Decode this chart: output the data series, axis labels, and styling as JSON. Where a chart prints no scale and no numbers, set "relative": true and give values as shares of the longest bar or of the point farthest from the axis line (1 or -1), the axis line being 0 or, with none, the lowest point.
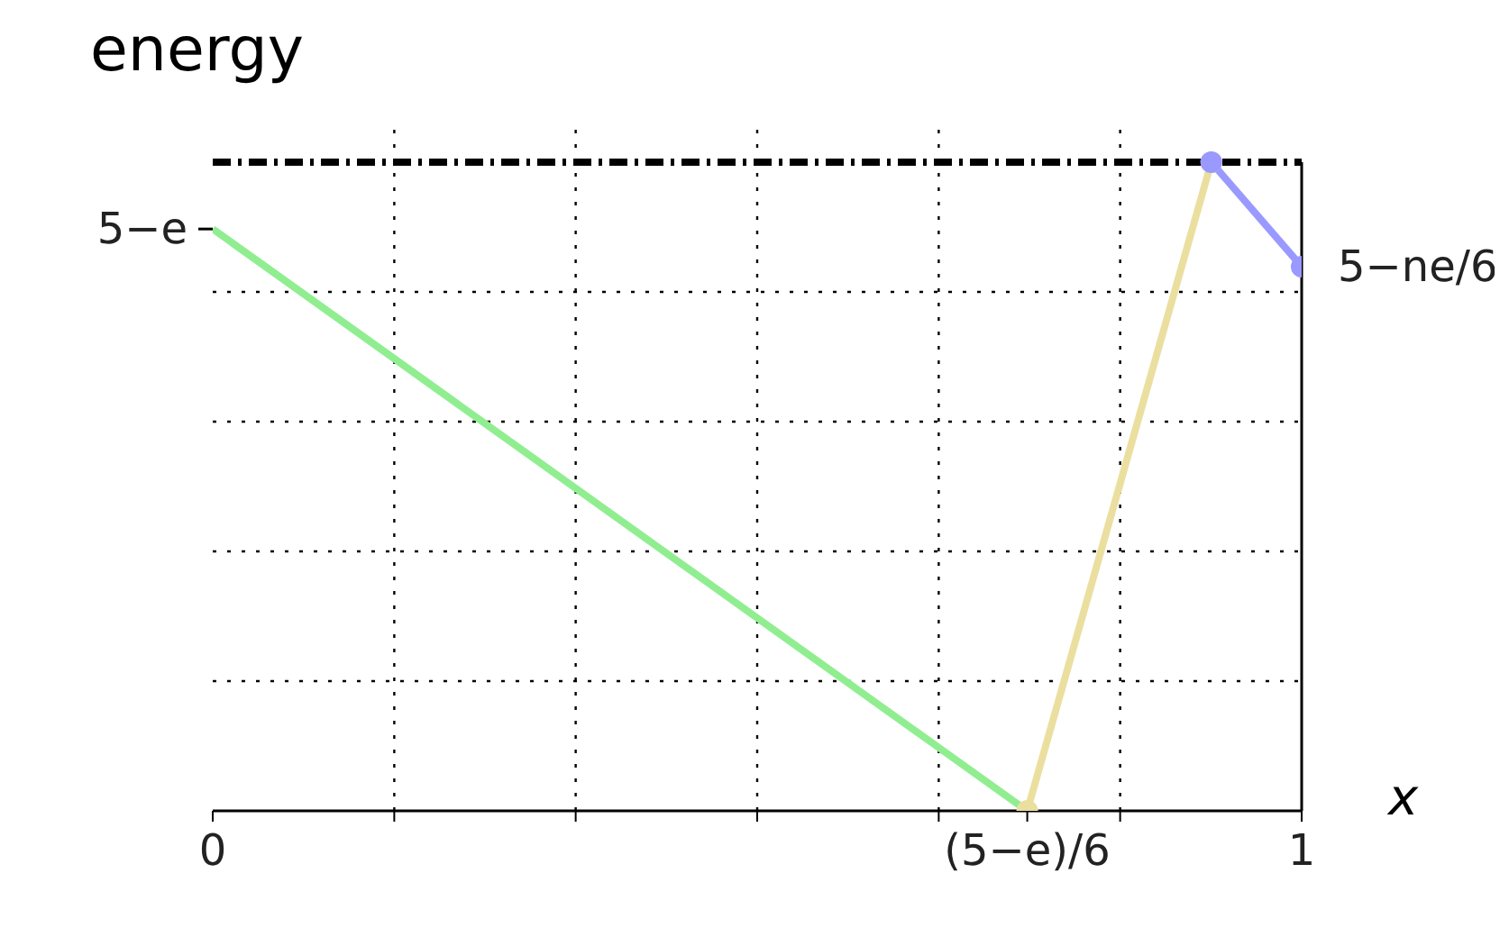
{
  "chart_data": {
    "type": "line",
    "title": "energy",
    "xlabel": "x",
    "relative": true,
    "xlim": [
      0,
      1
    ],
    "xticks": [
      {
        "value": 0,
        "label": "0"
      },
      {
        "value": 0.1667,
        "label": null
      },
      {
        "value": 0.3333,
        "label": null
      },
      {
        "value": 0.5,
        "label": null
      },
      {
        "value": 0.6667,
        "label": null
      },
      {
        "value": 0.748,
        "label": "(5−e)/6"
      },
      {
        "value": 0.8333,
        "label": null
      },
      {
        "value": 1,
        "label": "1"
      }
    ],
    "annotations": [
      {
        "text": "5−e",
        "x": 0,
        "y": 0.897
      },
      {
        "text": "5−ne/6",
        "x": 1,
        "y": 0.839
      }
    ],
    "grid": true,
    "marker": "none",
    "line_style": "solid",
    "ref_lines": [
      {
        "axis": "y",
        "value": 1,
        "color": "#000000",
        "line_style": "dashed"
      }
    ],
    "series": [
      {
        "color": "#90ee90",
        "x": [
          0,
          0.748
        ],
        "values": [
          0.897,
          0
        ]
      },
      {
        "color": "#ebdfa0",
        "x": [
          0.748,
          0.917
        ],
        "values": [
          0,
          1
        ],
        "marker": "circle"
      },
      {
        "color": "#9999ff",
        "x": [
          0.917,
          1
        ],
        "values": [
          1,
          0.839
        ],
        "marker": "circle"
      }
    ]
  }
}
